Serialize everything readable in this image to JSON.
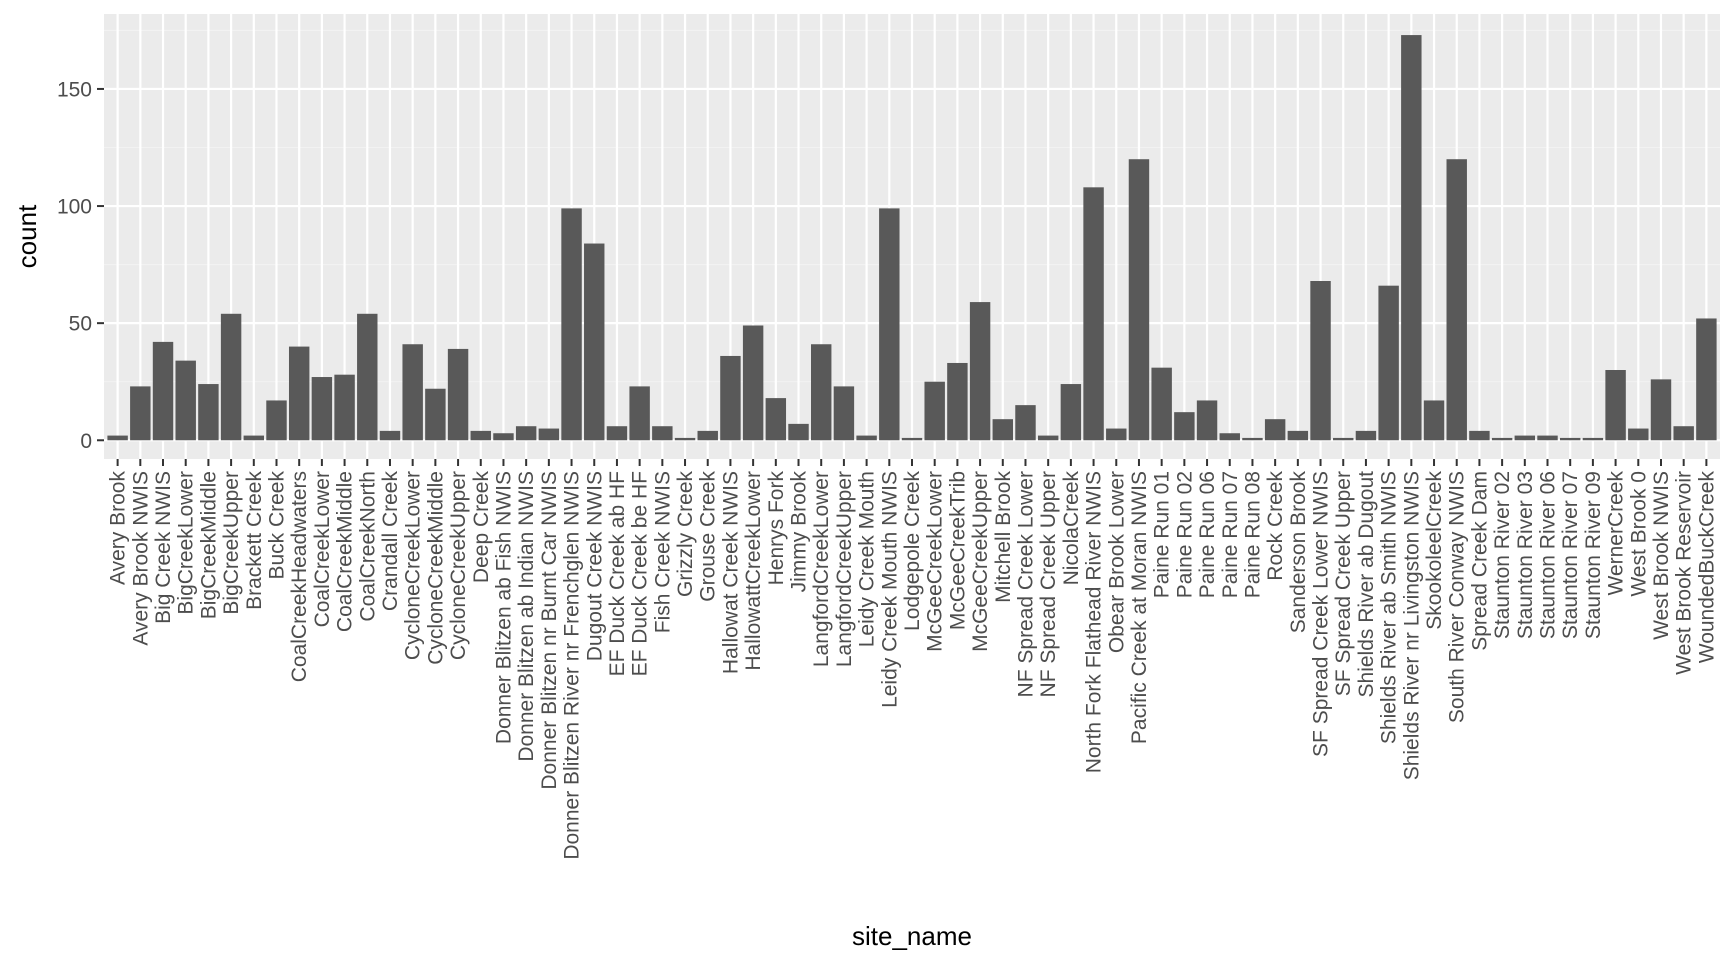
{
  "colors": {
    "panel": "#ebebeb",
    "grid_major": "#ffffff",
    "grid_minor": "#f2f2f2",
    "bar": "#595959",
    "tick": "#333333"
  },
  "chart_data": {
    "type": "bar",
    "xlabel": "site_name",
    "ylabel": "count",
    "ylim": [
      -8,
      182
    ],
    "y_ticks": [
      0,
      50,
      100,
      150
    ],
    "grid": true,
    "legend": "none",
    "categories": [
      "Avery Brook",
      "Avery Brook NWIS",
      "Big Creek NWIS",
      "BigCreekLower",
      "BigCreekMiddle",
      "BigCreekUpper",
      "Brackett Creek",
      "Buck Creek",
      "CoalCreekHeadwaters",
      "CoalCreekLower",
      "CoalCreekMiddle",
      "CoalCreekNorth",
      "Crandall Creek",
      "CycloneCreekLower",
      "CycloneCreekMiddle",
      "CycloneCreekUpper",
      "Deep Creek",
      "Donner Blitzen ab Fish NWIS",
      "Donner Blitzen ab Indian NWIS",
      "Donner Blitzen nr Burnt Car NWIS",
      "Donner Blitzen River nr Frenchglen NWIS",
      "Dugout Creek NWIS",
      "EF Duck Creek ab HF",
      "EF Duck Creek be HF",
      "Fish Creek NWIS",
      "Grizzly Creek",
      "Grouse Creek",
      "Hallowat Creek NWIS",
      "HallowattCreekLower",
      "Henrys Fork",
      "Jimmy Brook",
      "LangfordCreekLower",
      "LangfordCreekUpper",
      "Leidy Creek Mouth",
      "Leidy Creek Mouth NWIS",
      "Lodgepole Creek",
      "McGeeCreekLower",
      "McGeeCreekTrib",
      "McGeeCreekUpper",
      "Mitchell Brook",
      "NF Spread Creek Lower",
      "NF Spread Creek Upper",
      "NicolaCreek",
      "North Fork Flathead River NWIS",
      "Obear Brook Lower",
      "Pacific Creek at Moran NWIS",
      "Paine Run 01",
      "Paine Run 02",
      "Paine Run 06",
      "Paine Run 07",
      "Paine Run 08",
      "Rock Creek",
      "Sanderson Brook",
      "SF Spread Creek Lower NWIS",
      "SF Spread Creek Upper",
      "Shields River ab Dugout",
      "Shields River ab Smith NWIS",
      "Shields River nr Livingston NWIS",
      "SkookoleelCreek",
      "South River Conway NWIS",
      "Spread Creek Dam",
      "Staunton River 02",
      "Staunton River 03",
      "Staunton River 06",
      "Staunton River 07",
      "Staunton River 09",
      "WernerCreek",
      "West Brook 0",
      "West Brook NWIS",
      "West Brook Reservoir",
      "WoundedBuckCreek"
    ],
    "values": [
      2,
      23,
      42,
      34,
      24,
      54,
      2,
      17,
      40,
      27,
      28,
      54,
      4,
      41,
      22,
      39,
      4,
      3,
      6,
      5,
      99,
      84,
      6,
      23,
      6,
      1,
      4,
      36,
      49,
      18,
      7,
      41,
      23,
      2,
      99,
      1,
      25,
      33,
      59,
      9,
      15,
      2,
      24,
      108,
      5,
      120,
      31,
      12,
      17,
      3,
      1,
      9,
      4,
      68,
      1,
      4,
      66,
      173,
      17,
      120,
      4,
      1,
      2,
      2,
      1,
      1,
      30,
      5,
      26,
      6,
      52
    ]
  }
}
